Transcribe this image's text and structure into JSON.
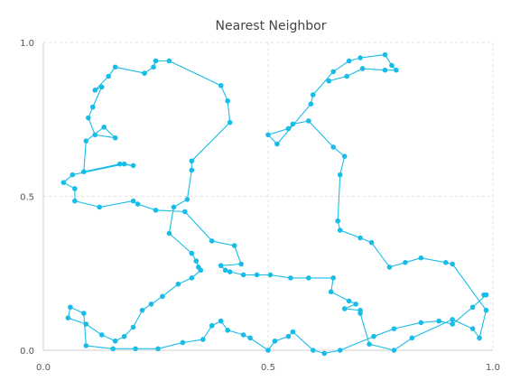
{
  "chart_data": {
    "type": "line",
    "title": "Nearest Neighbor",
    "xlabel": "",
    "ylabel": "",
    "xlim": [
      0,
      1
    ],
    "ylim": [
      0,
      1
    ],
    "x_ticks": [
      "0.0",
      "0.5",
      "1.0"
    ],
    "y_ticks": [
      "0.0",
      "0.5",
      "1.0"
    ],
    "grid": true,
    "legend": "none",
    "series": [
      {
        "name": "",
        "color": "#17bde8",
        "x": [
          0.635,
          0.675,
          0.71,
          0.76,
          0.785,
          0.775,
          0.76,
          0.705,
          0.68,
          0.645,
          0.6,
          0.595,
          0.52,
          0.5,
          0.545,
          0.555,
          0.59,
          0.645,
          0.67,
          0.66,
          0.655,
          0.66,
          0.705,
          0.73,
          0.77,
          0.805,
          0.84,
          0.895,
          0.91,
          0.985,
          0.97,
          0.955,
          0.91,
          0.82,
          0.78,
          0.725,
          0.705,
          0.705,
          0.67,
          0.695,
          0.68,
          0.64,
          0.645,
          0.59,
          0.55,
          0.505,
          0.475,
          0.445,
          0.415,
          0.405,
          0.395,
          0.44,
          0.425,
          0.375,
          0.315,
          0.25,
          0.21,
          0.2,
          0.125,
          0.07,
          0.07,
          0.045,
          0.065,
          0.18,
          0.2,
          0.17,
          0.09,
          0.095,
          0.135,
          0.16,
          0.115,
          0.1,
          0.11,
          0.13,
          0.115,
          0.145,
          0.16,
          0.225,
          0.245,
          0.25,
          0.28,
          0.395,
          0.41,
          0.415,
          0.33,
          0.33,
          0.32,
          0.29,
          0.28,
          0.33,
          0.34,
          0.345,
          0.35,
          0.33,
          0.3,
          0.265,
          0.24,
          0.22,
          0.2,
          0.18,
          0.16,
          0.13,
          0.095,
          0.055,
          0.06,
          0.09,
          0.095,
          0.155,
          0.205,
          0.255,
          0.31,
          0.355,
          0.375,
          0.395,
          0.41,
          0.445,
          0.46,
          0.5,
          0.515,
          0.545,
          0.555,
          0.6,
          0.625,
          0.66,
          0.735,
          0.78,
          0.84,
          0.88,
          0.91,
          0.955,
          0.985,
          0.98
        ],
        "y": [
          0.875,
          0.89,
          0.915,
          0.91,
          0.91,
          0.925,
          0.96,
          0.95,
          0.94,
          0.905,
          0.83,
          0.8,
          0.67,
          0.7,
          0.72,
          0.735,
          0.745,
          0.66,
          0.63,
          0.57,
          0.42,
          0.39,
          0.365,
          0.35,
          0.27,
          0.285,
          0.3,
          0.285,
          0.28,
          0.13,
          0.04,
          0.07,
          0.1,
          0.04,
          0.0,
          0.02,
          0.12,
          0.13,
          0.135,
          0.15,
          0.16,
          0.19,
          0.235,
          0.235,
          0.235,
          0.245,
          0.245,
          0.245,
          0.255,
          0.26,
          0.275,
          0.28,
          0.34,
          0.355,
          0.45,
          0.455,
          0.475,
          0.485,
          0.465,
          0.485,
          0.525,
          0.545,
          0.57,
          0.605,
          0.6,
          0.605,
          0.58,
          0.68,
          0.725,
          0.69,
          0.7,
          0.755,
          0.79,
          0.855,
          0.845,
          0.89,
          0.92,
          0.9,
          0.92,
          0.94,
          0.94,
          0.86,
          0.81,
          0.74,
          0.615,
          0.585,
          0.49,
          0.465,
          0.38,
          0.315,
          0.29,
          0.27,
          0.26,
          0.235,
          0.215,
          0.175,
          0.15,
          0.13,
          0.075,
          0.045,
          0.03,
          0.05,
          0.085,
          0.105,
          0.14,
          0.12,
          0.015,
          0.005,
          0.005,
          0.005,
          0.025,
          0.035,
          0.08,
          0.095,
          0.065,
          0.05,
          0.04,
          0.0,
          0.03,
          0.045,
          0.06,
          0.0,
          -0.01,
          0.0,
          0.045,
          0.07,
          0.09,
          0.095,
          0.085,
          0.14,
          0.18,
          0.18
        ]
      }
    ]
  }
}
